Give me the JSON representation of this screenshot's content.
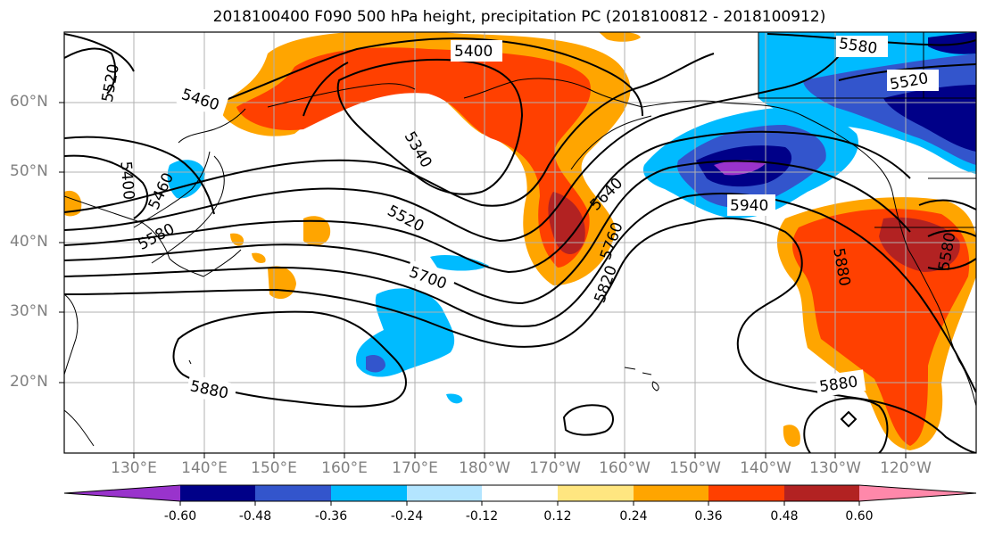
{
  "title": "2018100400 F090 500 hPa height, precipitation PC (2018100812 - 2018100912)",
  "lat_labels": [
    "60°N",
    "50°N",
    "40°N",
    "30°N",
    "20°N"
  ],
  "lon_labels": [
    "130°E",
    "140°E",
    "150°E",
    "160°E",
    "170°E",
    "180°W",
    "170°W",
    "160°W",
    "150°W",
    "140°W",
    "130°W",
    "120°W"
  ],
  "contour_labels": [
    "5400",
    "5580",
    "5520",
    "5460",
    "5520",
    "5340",
    "5640",
    "5400",
    "5460",
    "5580",
    "5520",
    "5760",
    "5940",
    "5700",
    "5820",
    "5580",
    "5880",
    "5880",
    "5880"
  ],
  "colorbar": {
    "ticks": [
      "-0.60",
      "-0.48",
      "-0.36",
      "-0.24",
      "-0.12",
      "0.12",
      "0.24",
      "0.36",
      "0.48",
      "0.60"
    ],
    "colors": [
      "#9933cc",
      "#000088",
      "#3355cc",
      "#00bbff",
      "#b3e5ff",
      "#ffffff",
      "#ffe680",
      "#ffa500",
      "#ff4000",
      "#b22222",
      "#ff88aa"
    ]
  }
}
